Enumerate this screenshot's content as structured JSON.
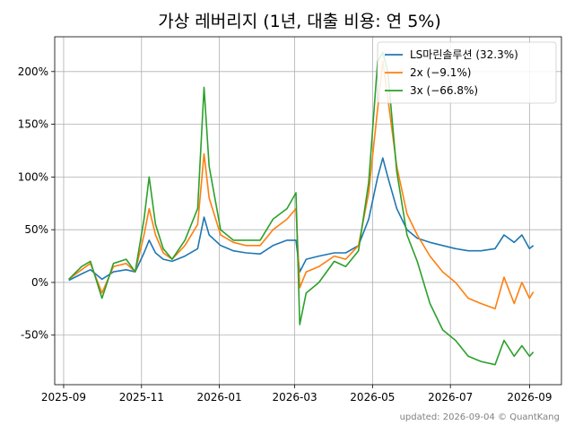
{
  "chart_data": {
    "type": "line",
    "title": "가상 레버리지 (1년, 대출 비용: 연 5%)",
    "xlabel": "",
    "ylabel": "",
    "x_ticks": [
      "2025-09",
      "2025-11",
      "2026-01",
      "2026-03",
      "2026-05",
      "2026-07",
      "2026-09"
    ],
    "y_ticks": [
      "-50%",
      "0%",
      "50%",
      "100%",
      "150%",
      "200%"
    ],
    "y_tick_values": [
      -50,
      0,
      50,
      100,
      150,
      200
    ],
    "xlim": [
      "2025-08-25",
      "2026-09-26"
    ],
    "ylim": [
      -97,
      233
    ],
    "grid": true,
    "legend_position": "top-right",
    "footer": "updated: 2026-09-04 © QuantKang",
    "series": [
      {
        "name": "LS마린솔루션 (32.3%)",
        "color": "#1f77b4",
        "points": [
          [
            "2025-09-05",
            2
          ],
          [
            "2025-09-15",
            8
          ],
          [
            "2025-09-22",
            12
          ],
          [
            "2025-10-01",
            3
          ],
          [
            "2025-10-10",
            10
          ],
          [
            "2025-10-20",
            12
          ],
          [
            "2025-10-27",
            10
          ],
          [
            "2025-11-03",
            28
          ],
          [
            "2025-11-07",
            40
          ],
          [
            "2025-11-12",
            28
          ],
          [
            "2025-11-18",
            22
          ],
          [
            "2025-11-25",
            20
          ],
          [
            "2025-12-05",
            25
          ],
          [
            "2025-12-15",
            32
          ],
          [
            "2025-12-20",
            62
          ],
          [
            "2025-12-24",
            45
          ],
          [
            "2026-01-02",
            35
          ],
          [
            "2026-01-12",
            30
          ],
          [
            "2026-01-22",
            28
          ],
          [
            "2026-02-02",
            27
          ],
          [
            "2026-02-12",
            35
          ],
          [
            "2026-02-23",
            40
          ],
          [
            "2026-03-02",
            40
          ],
          [
            "2026-03-05",
            10
          ],
          [
            "2026-03-10",
            22
          ],
          [
            "2026-03-20",
            25
          ],
          [
            "2026-04-01",
            28
          ],
          [
            "2026-04-10",
            28
          ],
          [
            "2026-04-20",
            35
          ],
          [
            "2026-04-28",
            60
          ],
          [
            "2026-05-05",
            100
          ],
          [
            "2026-05-09",
            118
          ],
          [
            "2026-05-13",
            100
          ],
          [
            "2026-05-20",
            70
          ],
          [
            "2026-05-28",
            50
          ],
          [
            "2026-06-05",
            42
          ],
          [
            "2026-06-15",
            38
          ],
          [
            "2026-06-25",
            35
          ],
          [
            "2026-07-05",
            32
          ],
          [
            "2026-07-15",
            30
          ],
          [
            "2026-07-25",
            30
          ],
          [
            "2026-08-05",
            32
          ],
          [
            "2026-08-12",
            45
          ],
          [
            "2026-08-20",
            38
          ],
          [
            "2026-08-26",
            45
          ],
          [
            "2026-09-01",
            32
          ],
          [
            "2026-09-04",
            35
          ]
        ]
      },
      {
        "name": "2x (−9.1%)",
        "color": "#ff7f0e",
        "points": [
          [
            "2025-09-05",
            3
          ],
          [
            "2025-09-15",
            12
          ],
          [
            "2025-09-22",
            18
          ],
          [
            "2025-10-01",
            -10
          ],
          [
            "2025-10-10",
            15
          ],
          [
            "2025-10-20",
            18
          ],
          [
            "2025-10-27",
            10
          ],
          [
            "2025-11-03",
            45
          ],
          [
            "2025-11-07",
            70
          ],
          [
            "2025-11-12",
            45
          ],
          [
            "2025-11-18",
            28
          ],
          [
            "2025-11-25",
            22
          ],
          [
            "2025-12-05",
            35
          ],
          [
            "2025-12-15",
            55
          ],
          [
            "2025-12-20",
            122
          ],
          [
            "2025-12-24",
            80
          ],
          [
            "2026-01-02",
            45
          ],
          [
            "2026-01-12",
            38
          ],
          [
            "2026-01-22",
            35
          ],
          [
            "2026-02-02",
            35
          ],
          [
            "2026-02-12",
            50
          ],
          [
            "2026-02-23",
            60
          ],
          [
            "2026-03-02",
            70
          ],
          [
            "2026-03-05",
            -5
          ],
          [
            "2026-03-10",
            10
          ],
          [
            "2026-03-20",
            15
          ],
          [
            "2026-04-01",
            25
          ],
          [
            "2026-04-10",
            22
          ],
          [
            "2026-04-20",
            35
          ],
          [
            "2026-04-28",
            85
          ],
          [
            "2026-05-05",
            165
          ],
          [
            "2026-05-09",
            210
          ],
          [
            "2026-05-13",
            175
          ],
          [
            "2026-05-20",
            110
          ],
          [
            "2026-05-28",
            65
          ],
          [
            "2026-06-05",
            45
          ],
          [
            "2026-06-15",
            25
          ],
          [
            "2026-06-25",
            10
          ],
          [
            "2026-07-05",
            0
          ],
          [
            "2026-07-15",
            -15
          ],
          [
            "2026-07-25",
            -20
          ],
          [
            "2026-08-05",
            -25
          ],
          [
            "2026-08-12",
            5
          ],
          [
            "2026-08-20",
            -20
          ],
          [
            "2026-08-26",
            0
          ],
          [
            "2026-09-01",
            -15
          ],
          [
            "2026-09-04",
            -9
          ]
        ]
      },
      {
        "name": "3x (−66.8%)",
        "color": "#2ca02c",
        "points": [
          [
            "2025-09-05",
            3
          ],
          [
            "2025-09-15",
            15
          ],
          [
            "2025-09-22",
            20
          ],
          [
            "2025-10-01",
            -15
          ],
          [
            "2025-10-10",
            18
          ],
          [
            "2025-10-20",
            22
          ],
          [
            "2025-10-27",
            10
          ],
          [
            "2025-11-03",
            60
          ],
          [
            "2025-11-07",
            100
          ],
          [
            "2025-11-12",
            55
          ],
          [
            "2025-11-18",
            32
          ],
          [
            "2025-11-25",
            22
          ],
          [
            "2025-12-05",
            40
          ],
          [
            "2025-12-15",
            70
          ],
          [
            "2025-12-20",
            185
          ],
          [
            "2025-12-24",
            110
          ],
          [
            "2026-01-02",
            50
          ],
          [
            "2026-01-12",
            40
          ],
          [
            "2026-01-22",
            40
          ],
          [
            "2026-02-02",
            40
          ],
          [
            "2026-02-12",
            60
          ],
          [
            "2026-02-23",
            70
          ],
          [
            "2026-03-02",
            85
          ],
          [
            "2026-03-05",
            -40
          ],
          [
            "2026-03-10",
            -10
          ],
          [
            "2026-03-20",
            0
          ],
          [
            "2026-04-01",
            20
          ],
          [
            "2026-04-10",
            15
          ],
          [
            "2026-04-20",
            30
          ],
          [
            "2026-04-28",
            95
          ],
          [
            "2026-05-05",
            210
          ],
          [
            "2026-05-09",
            218
          ],
          [
            "2026-05-13",
            200
          ],
          [
            "2026-05-20",
            105
          ],
          [
            "2026-05-28",
            45
          ],
          [
            "2026-06-05",
            20
          ],
          [
            "2026-06-15",
            -20
          ],
          [
            "2026-06-25",
            -45
          ],
          [
            "2026-07-05",
            -55
          ],
          [
            "2026-07-15",
            -70
          ],
          [
            "2026-07-25",
            -75
          ],
          [
            "2026-08-05",
            -78
          ],
          [
            "2026-08-12",
            -55
          ],
          [
            "2026-08-20",
            -70
          ],
          [
            "2026-08-26",
            -60
          ],
          [
            "2026-09-01",
            -70
          ],
          [
            "2026-09-04",
            -66
          ]
        ]
      }
    ]
  }
}
